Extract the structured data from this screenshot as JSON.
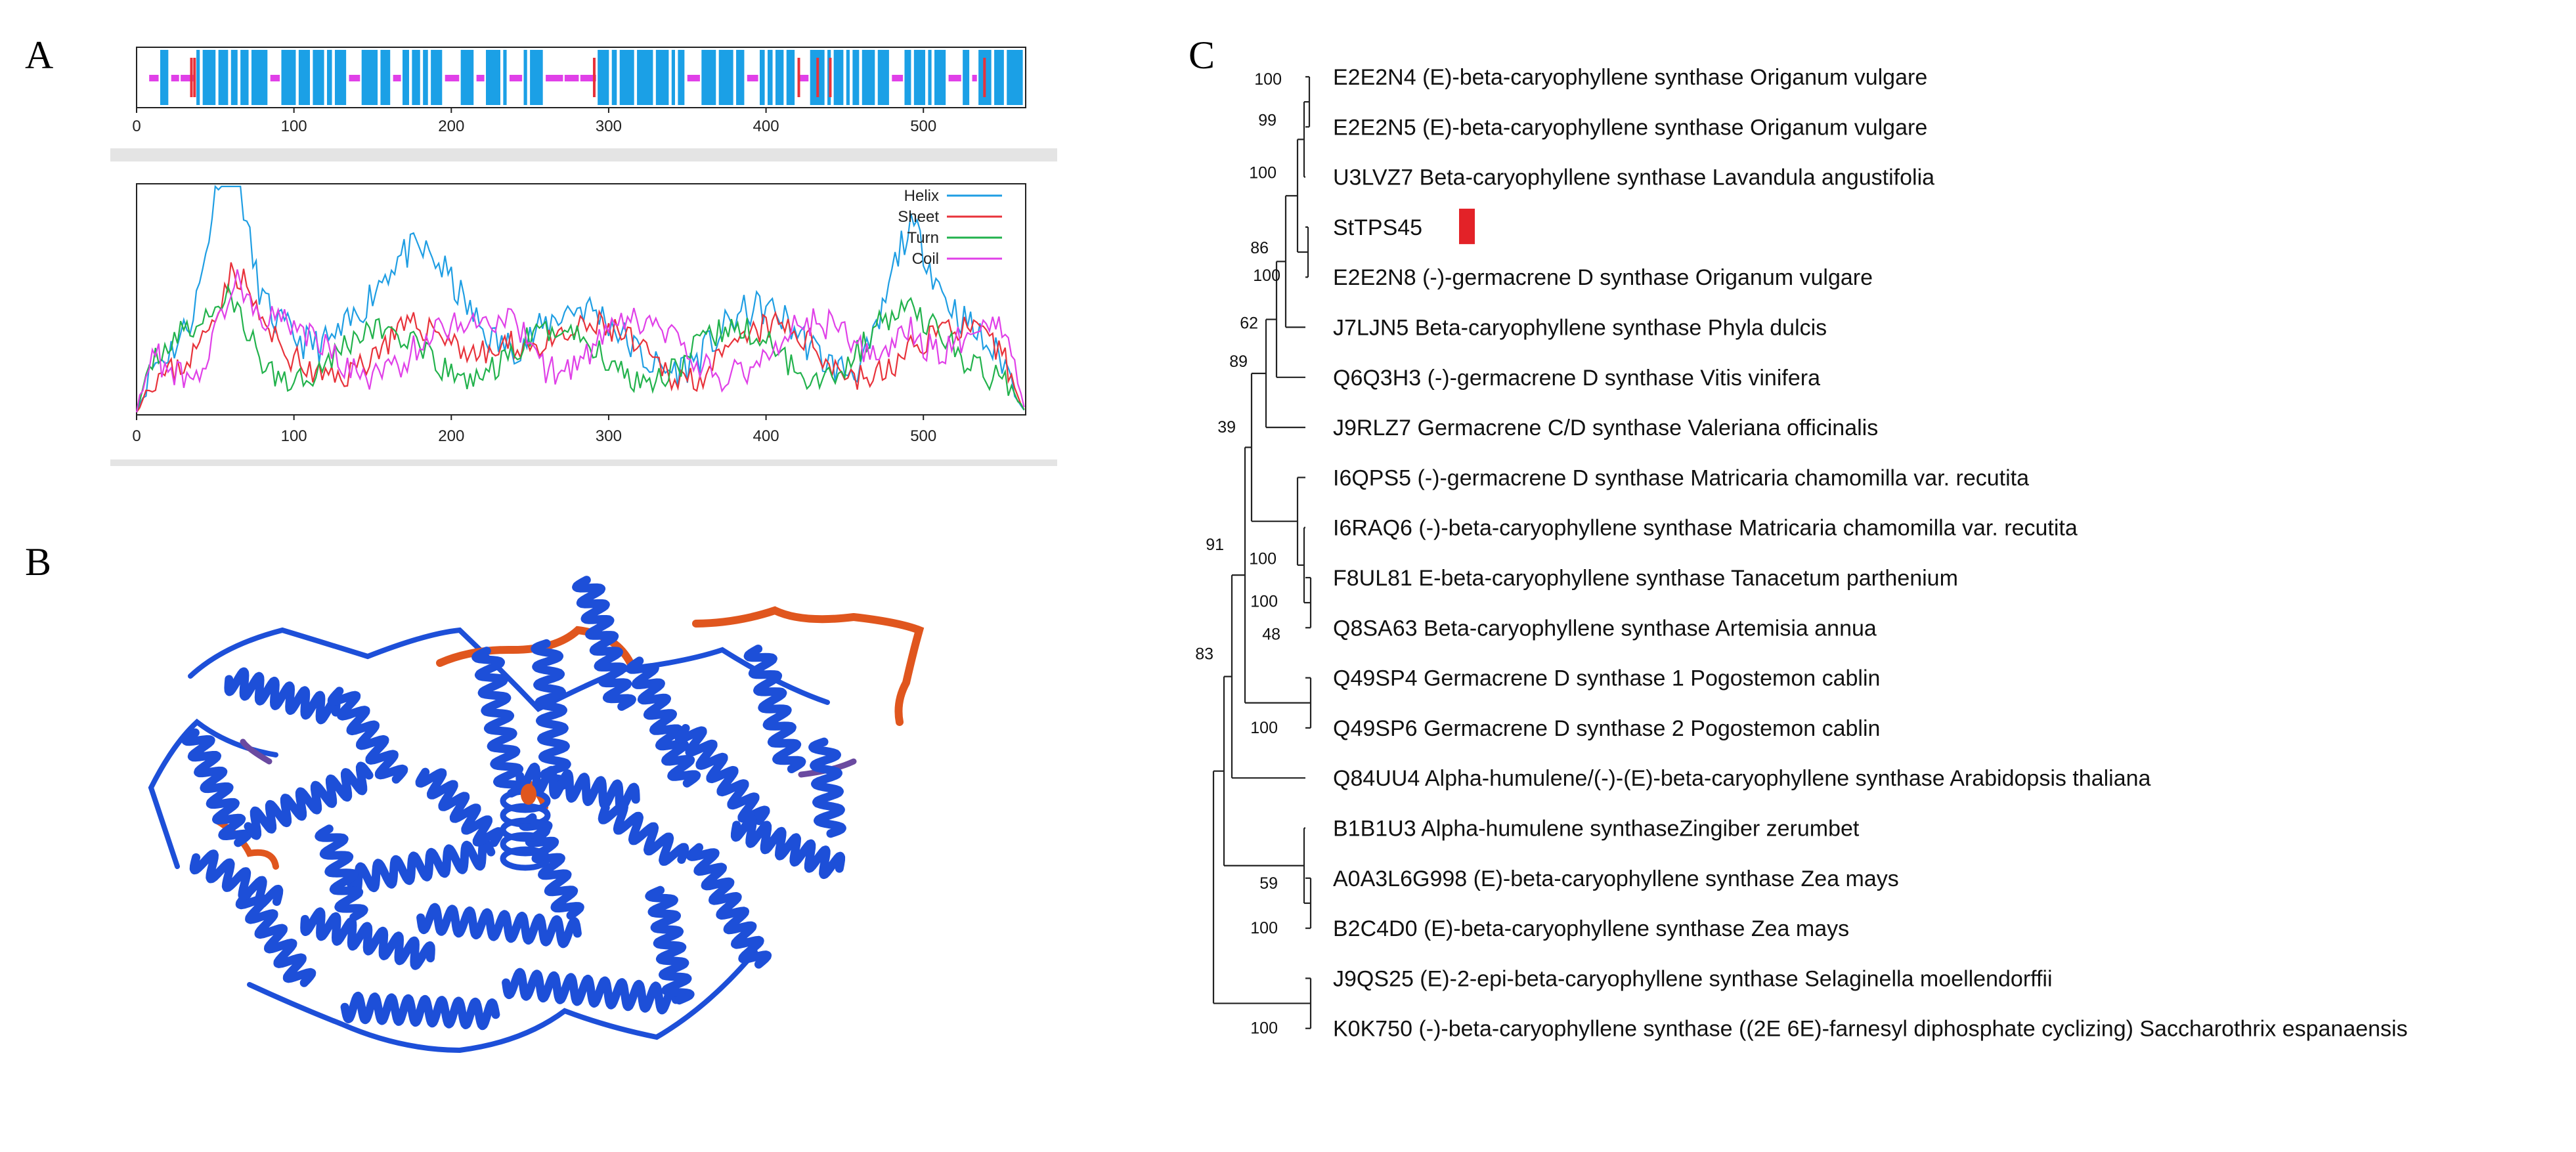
{
  "panels": {
    "a": "A",
    "b": "B",
    "c": "C"
  },
  "panel_a": {
    "top_track_ticks": [
      "0",
      "100",
      "200",
      "300",
      "400",
      "500"
    ],
    "profile_ticks": [
      "0",
      "100",
      "200",
      "300",
      "400",
      "500"
    ],
    "legend": [
      {
        "label": "Helix",
        "color": "#1f9ee3"
      },
      {
        "label": "Sheet",
        "color": "#e8323a"
      },
      {
        "label": "Turn",
        "color": "#22b24c"
      },
      {
        "label": "Coil",
        "color": "#e040e8"
      }
    ],
    "colors": {
      "helix_band": "#1ba0e6",
      "coil": "#e040e8",
      "sheet": "#e8323a",
      "grey_band": "#e6e6e6"
    }
  },
  "panel_b": {
    "colors": {
      "helix": "#1d4fd8",
      "loop": "#e0561e",
      "mid": "#6a4aa0"
    }
  },
  "tree": {
    "leaves": [
      "E2E2N4 (E)-beta-caryophyllene synthase Origanum vulgare",
      "E2E2N5 (E)-beta-caryophyllene synthase Origanum vulgare",
      "U3LVZ7 Beta-caryophyllene synthase Lavandula angustifolia",
      "StTPS45",
      "E2E2N8 (-)-germacrene D synthase Origanum vulgare",
      "J7LJN5 Beta-caryophyllene synthase Phyla dulcis",
      "Q6Q3H3 (-)-germacrene D synthase Vitis vinifera",
      "J9RLZ7 Germacrene C/D synthase Valeriana officinalis",
      "I6QPS5 (-)-germacrene D synthase Matricaria chamomilla var. recutita",
      "I6RAQ6 (-)-beta-caryophyllene synthase Matricaria chamomilla var. recutita",
      "F8UL81 E-beta-caryophyllene synthase Tanacetum parthenium",
      "Q8SA63 Beta-caryophyllene synthase Artemisia annua",
      "Q49SP4 Germacrene D synthase 1 Pogostemon cablin",
      "Q49SP6 Germacrene D synthase 2 Pogostemon cablin",
      "Q84UU4 Alpha-humulene/(-)-(E)-beta-caryophyllene synthase Arabidopsis thaliana",
      "B1B1U3 Alpha-humulene synthaseZingiber zerumbet",
      "A0A3L6G998 (E)-beta-caryophyllene synthase Zea mays",
      "B2C4D0 (E)-beta-caryophyllene synthase Zea mays",
      "J9QS25 (E)-2-epi-beta-caryophyllene synthase Selaginella moellendorffii",
      "K0K750 (-)-beta-caryophyllene synthase ((2E 6E)-farnesyl diphosphate cyclizing) Saccharothrix espanaensis"
    ],
    "bootstrap": [
      "100",
      "99",
      "100",
      "86",
      "100",
      "62",
      "89",
      "39",
      "100",
      "91",
      "100",
      "48",
      "100",
      "83",
      "59",
      "100",
      "100"
    ],
    "highlight_color": "#e32228"
  }
}
